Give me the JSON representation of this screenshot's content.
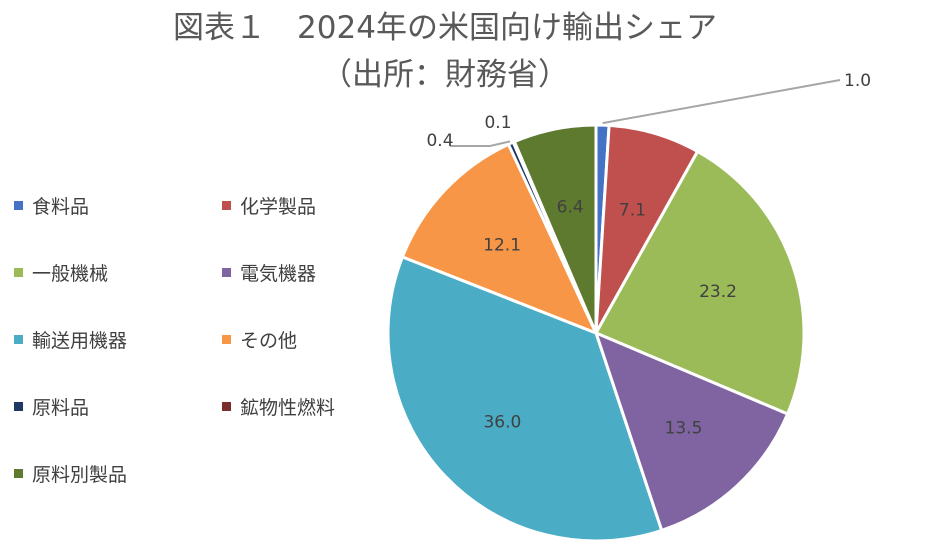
{
  "chart_data": {
    "type": "pie",
    "title": "図表１　2024年の米国向け輸出シェア",
    "subtitle": "（出所：財務省）",
    "legend_position": "left",
    "slices": [
      {
        "name": "食料品",
        "value": 1.0,
        "label": "1.0",
        "color": "#4472C4"
      },
      {
        "name": "化学製品",
        "value": 7.1,
        "label": "7.1",
        "color": "#C0504D"
      },
      {
        "name": "一般機械",
        "value": 23.2,
        "label": "23.2",
        "color": "#9BBB59"
      },
      {
        "name": "電気機器",
        "value": 13.5,
        "label": "13.5",
        "color": "#8064A2"
      },
      {
        "name": "輸送用機器",
        "value": 36.0,
        "label": "36.0",
        "color": "#4BACC6"
      },
      {
        "name": "その他",
        "value": 12.1,
        "label": "12.1",
        "color": "#F79646"
      },
      {
        "name": "原料品",
        "value": 0.4,
        "label": "0.4",
        "color": "#1F3864"
      },
      {
        "name": "鉱物性燃料",
        "value": 0.1,
        "label": "0.1",
        "color": "#7B2C2C"
      },
      {
        "name": "原料別製品",
        "value": 6.4,
        "label": "6.4",
        "color": "#5E7A2E"
      }
    ]
  }
}
